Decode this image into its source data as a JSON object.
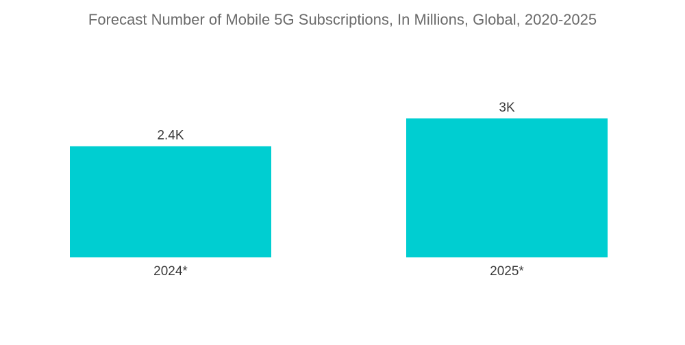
{
  "chart_data": {
    "type": "bar",
    "title": "Forecast Number of Mobile 5G Subscriptions, In Millions, Global, 2020-2025",
    "categories": [
      "2024*",
      "2025*"
    ],
    "values": [
      2400,
      3000
    ],
    "value_labels": [
      "2.4K",
      "3K"
    ],
    "xlabel": "",
    "ylabel": "",
    "grid": false,
    "legend": "none",
    "bar_color": "#00CED1"
  }
}
